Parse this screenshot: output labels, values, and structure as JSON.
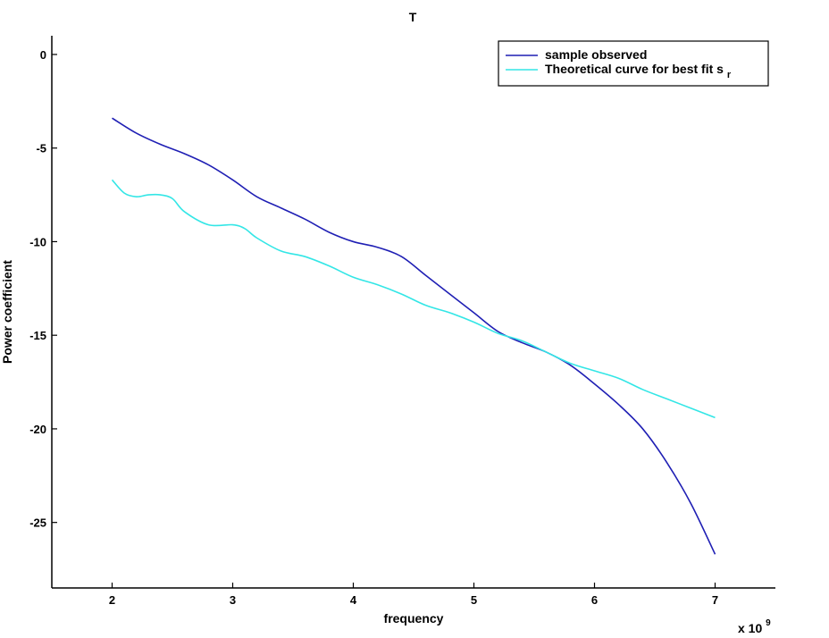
{
  "chart_data": {
    "type": "line",
    "title": "T",
    "xlabel": "frequency",
    "ylabel": "Power coefficient",
    "x_exponent_label": "x 10",
    "x_exponent_power": "9",
    "xlim": [
      1.5,
      7.5
    ],
    "ylim": [
      -28.5,
      1
    ],
    "xticks": [
      2,
      3,
      4,
      5,
      6,
      7
    ],
    "yticks": [
      0,
      -5,
      -10,
      -15,
      -20,
      -25
    ],
    "grid": false,
    "legend_position": "top-right",
    "series": [
      {
        "name": "sample observed",
        "color": "#1f1fb4",
        "points": [
          [
            2.0,
            -3.4
          ],
          [
            2.2,
            -4.2
          ],
          [
            2.4,
            -4.8
          ],
          [
            2.6,
            -5.3
          ],
          [
            2.8,
            -5.9
          ],
          [
            3.0,
            -6.7
          ],
          [
            3.2,
            -7.6
          ],
          [
            3.4,
            -8.2
          ],
          [
            3.6,
            -8.8
          ],
          [
            3.8,
            -9.5
          ],
          [
            4.0,
            -10.0
          ],
          [
            4.2,
            -10.3
          ],
          [
            4.4,
            -10.8
          ],
          [
            4.6,
            -11.8
          ],
          [
            4.8,
            -12.8
          ],
          [
            5.0,
            -13.8
          ],
          [
            5.2,
            -14.8
          ],
          [
            5.4,
            -15.4
          ],
          [
            5.6,
            -15.9
          ],
          [
            5.8,
            -16.6
          ],
          [
            6.0,
            -17.6
          ],
          [
            6.2,
            -18.7
          ],
          [
            6.4,
            -20.0
          ],
          [
            6.6,
            -21.8
          ],
          [
            6.8,
            -24.0
          ],
          [
            7.0,
            -26.7
          ]
        ]
      },
      {
        "name": "Theoretical curve for best fit s",
        "name_subscript": "r",
        "color": "#33e6e6",
        "points": [
          [
            2.0,
            -6.7
          ],
          [
            2.1,
            -7.4
          ],
          [
            2.2,
            -7.6
          ],
          [
            2.3,
            -7.5
          ],
          [
            2.4,
            -7.5
          ],
          [
            2.5,
            -7.7
          ],
          [
            2.6,
            -8.4
          ],
          [
            2.8,
            -9.1
          ],
          [
            3.0,
            -9.1
          ],
          [
            3.1,
            -9.3
          ],
          [
            3.2,
            -9.8
          ],
          [
            3.4,
            -10.5
          ],
          [
            3.6,
            -10.8
          ],
          [
            3.8,
            -11.3
          ],
          [
            4.0,
            -11.9
          ],
          [
            4.2,
            -12.3
          ],
          [
            4.4,
            -12.8
          ],
          [
            4.6,
            -13.4
          ],
          [
            4.8,
            -13.8
          ],
          [
            5.0,
            -14.3
          ],
          [
            5.2,
            -14.9
          ],
          [
            5.4,
            -15.3
          ],
          [
            5.6,
            -15.9
          ],
          [
            5.8,
            -16.5
          ],
          [
            6.0,
            -16.9
          ],
          [
            6.2,
            -17.3
          ],
          [
            6.4,
            -17.9
          ],
          [
            6.6,
            -18.4
          ],
          [
            6.8,
            -18.9
          ],
          [
            7.0,
            -19.4
          ]
        ]
      }
    ]
  }
}
